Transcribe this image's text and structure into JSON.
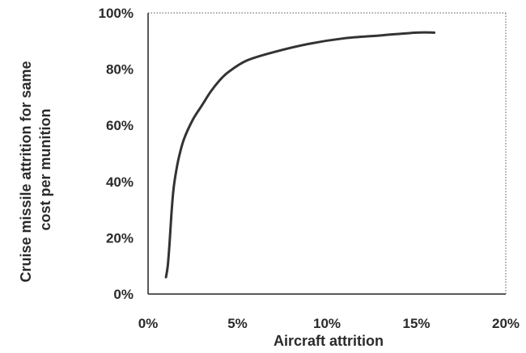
{
  "chart_data": {
    "type": "line",
    "title": "",
    "xlabel": "Aircraft attrition",
    "ylabel": [
      "Cruise missile attrition for same",
      "cost per munition"
    ],
    "xlim": [
      0,
      20
    ],
    "ylim": [
      0,
      100
    ],
    "x_ticks": [
      "0%",
      "5%",
      "10%",
      "15%",
      "20%"
    ],
    "y_ticks": [
      "0%",
      "20%",
      "40%",
      "60%",
      "80%",
      "100%"
    ],
    "grid": false,
    "series": [
      {
        "color": "#333333",
        "x": [
          1.0,
          1.1,
          1.2,
          1.3,
          1.4,
          1.5,
          1.7,
          2.0,
          2.5,
          3.0,
          3.5,
          4.0,
          4.5,
          5.5,
          7.0,
          9.0,
          11.0,
          13.0,
          15.0,
          16.0
        ],
        "y": [
          6,
          10,
          18,
          28,
          36,
          41,
          48,
          55,
          62,
          67,
          72,
          76,
          79,
          83,
          86,
          89,
          91,
          92,
          93,
          93
        ]
      }
    ]
  }
}
